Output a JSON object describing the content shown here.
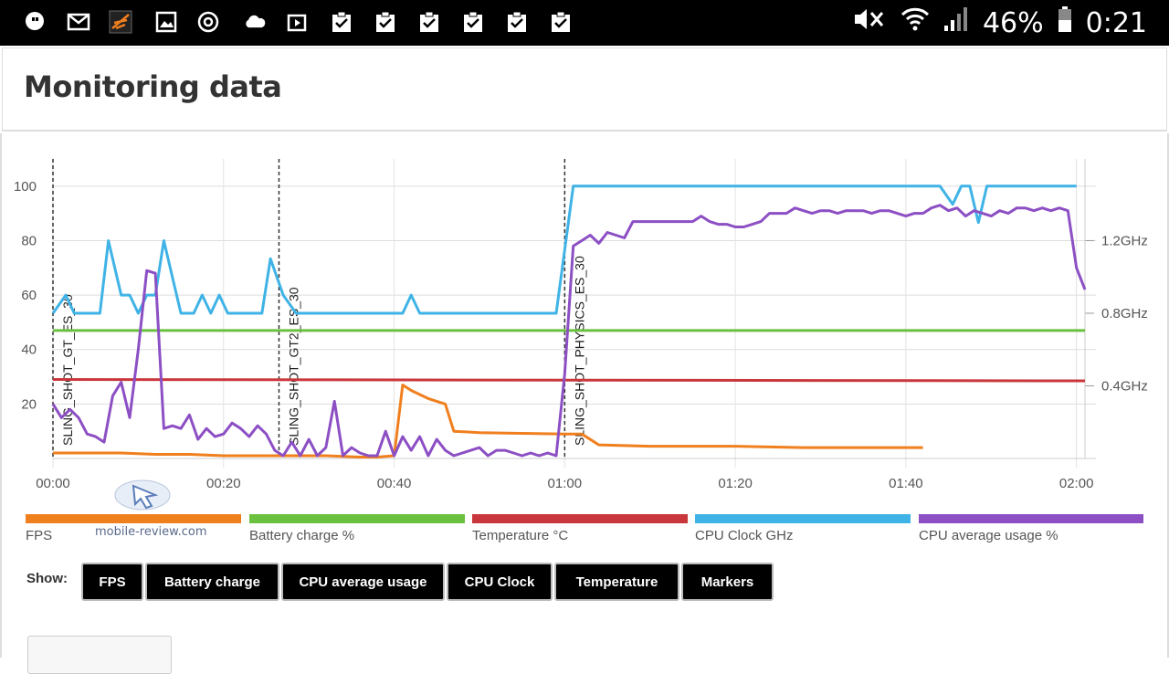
{
  "status_bar": {
    "battery_percent": "46%",
    "time": "0:21",
    "icons": [
      "chat-bubble-icon",
      "gmail-icon",
      "3dmark-icon",
      "gallery-icon",
      "sync-icon",
      "cloud-icon",
      "video-icon",
      "clipboard-check-icon",
      "clipboard-check-icon",
      "clipboard-check-icon",
      "clipboard-check-icon",
      "clipboard-check-icon",
      "clipboard-check-icon"
    ]
  },
  "page": {
    "title": "Monitoring data"
  },
  "watermark": {
    "text": "mobile-review.com"
  },
  "chart_data": {
    "type": "line",
    "x_ticks": [
      "00:00",
      "00:20",
      "00:40",
      "01:00",
      "01:20",
      "01:40",
      "02:00"
    ],
    "xlim_seconds": [
      0,
      7260
    ],
    "y_left_ticks": [
      "20",
      "40",
      "60",
      "80",
      "100"
    ],
    "ylim": [
      0,
      110
    ],
    "y_right_ticks": [
      "0.4GHz",
      "0.8GHz",
      "1.2GHz"
    ],
    "y_right_ylim_ghz": [
      0,
      1.65
    ],
    "grid": true,
    "markers": [
      {
        "t": 0,
        "label": "SLING_SHOT_GT_ES_30"
      },
      {
        "t": 1590,
        "label": "SLING_SHOT_GT2_ES_30"
      },
      {
        "t": 3600,
        "label": "SLING_SHOT_PHYSICS_ES_30"
      }
    ],
    "series": [
      {
        "name": "FPS",
        "color": "#f07f1e",
        "points": [
          [
            0,
            2
          ],
          [
            480,
            2
          ],
          [
            720,
            1.5
          ],
          [
            960,
            1.5
          ],
          [
            1200,
            1
          ],
          [
            1920,
            1
          ],
          [
            2160,
            0.5
          ],
          [
            2280,
            0.5
          ],
          [
            2400,
            1
          ],
          [
            2460,
            27
          ],
          [
            2520,
            25
          ],
          [
            2640,
            22
          ],
          [
            2760,
            20
          ],
          [
            2820,
            10
          ],
          [
            3000,
            9.5
          ],
          [
            3600,
            9
          ],
          [
            3720,
            9
          ],
          [
            3840,
            5
          ],
          [
            4200,
            4.5
          ],
          [
            4800,
            4.5
          ],
          [
            5280,
            4
          ],
          [
            5640,
            4
          ],
          [
            6000,
            4
          ],
          [
            6120,
            4
          ]
        ]
      },
      {
        "name": "Battery charge %",
        "color": "#6ac13f",
        "points": [
          [
            0,
            47
          ],
          [
            7260,
            47
          ]
        ]
      },
      {
        "name": "Temperature °C",
        "color": "#c9373d",
        "points": [
          [
            0,
            29
          ],
          [
            7260,
            28.5
          ]
        ]
      },
      {
        "name": "CPU Clock GHz",
        "color": "#3fb3e6",
        "points": [
          [
            0,
            0.8
          ],
          [
            90,
            0.9
          ],
          [
            150,
            0.8
          ],
          [
            270,
            0.8
          ],
          [
            330,
            0.8
          ],
          [
            390,
            1.2
          ],
          [
            480,
            0.9
          ],
          [
            540,
            0.9
          ],
          [
            600,
            0.8
          ],
          [
            660,
            0.9
          ],
          [
            720,
            0.9
          ],
          [
            780,
            1.2
          ],
          [
            840,
            1.0
          ],
          [
            900,
            0.8
          ],
          [
            990,
            0.8
          ],
          [
            1050,
            0.9
          ],
          [
            1110,
            0.8
          ],
          [
            1170,
            0.9
          ],
          [
            1230,
            0.8
          ],
          [
            1470,
            0.8
          ],
          [
            1530,
            1.1
          ],
          [
            1620,
            0.9
          ],
          [
            1710,
            0.8
          ],
          [
            2400,
            0.8
          ],
          [
            2460,
            0.8
          ],
          [
            2520,
            0.9
          ],
          [
            2580,
            0.8
          ],
          [
            3540,
            0.8
          ],
          [
            3660,
            1.5
          ],
          [
            6240,
            1.5
          ],
          [
            6330,
            1.4
          ],
          [
            6390,
            1.5
          ],
          [
            6450,
            1.5
          ],
          [
            6510,
            1.3
          ],
          [
            6570,
            1.5
          ],
          [
            7200,
            1.5
          ]
        ]
      },
      {
        "name": "CPU average usage %",
        "color": "#8c4fc4",
        "points": [
          [
            0,
            20
          ],
          [
            60,
            15
          ],
          [
            120,
            18
          ],
          [
            180,
            15
          ],
          [
            240,
            9
          ],
          [
            300,
            8
          ],
          [
            360,
            6
          ],
          [
            420,
            23
          ],
          [
            480,
            28
          ],
          [
            540,
            15
          ],
          [
            600,
            40
          ],
          [
            660,
            69
          ],
          [
            720,
            68
          ],
          [
            780,
            11
          ],
          [
            840,
            12
          ],
          [
            900,
            11
          ],
          [
            960,
            16
          ],
          [
            1020,
            7
          ],
          [
            1080,
            11
          ],
          [
            1140,
            8
          ],
          [
            1200,
            9
          ],
          [
            1260,
            13
          ],
          [
            1320,
            11
          ],
          [
            1380,
            8
          ],
          [
            1440,
            12
          ],
          [
            1500,
            9
          ],
          [
            1560,
            3
          ],
          [
            1620,
            1
          ],
          [
            1680,
            6
          ],
          [
            1740,
            1
          ],
          [
            1800,
            7
          ],
          [
            1860,
            1
          ],
          [
            1920,
            4
          ],
          [
            1980,
            21
          ],
          [
            2040,
            1
          ],
          [
            2100,
            4
          ],
          [
            2160,
            2
          ],
          [
            2220,
            1
          ],
          [
            2280,
            1
          ],
          [
            2340,
            10
          ],
          [
            2400,
            1
          ],
          [
            2460,
            8
          ],
          [
            2520,
            3
          ],
          [
            2580,
            8
          ],
          [
            2640,
            1
          ],
          [
            2700,
            7
          ],
          [
            2760,
            3
          ],
          [
            2820,
            1
          ],
          [
            2880,
            2
          ],
          [
            2940,
            3
          ],
          [
            3000,
            4
          ],
          [
            3060,
            1
          ],
          [
            3120,
            3
          ],
          [
            3180,
            3
          ],
          [
            3240,
            2
          ],
          [
            3300,
            1
          ],
          [
            3360,
            2
          ],
          [
            3420,
            1
          ],
          [
            3480,
            2
          ],
          [
            3540,
            1
          ],
          [
            3600,
            31
          ],
          [
            3660,
            78
          ],
          [
            3720,
            80
          ],
          [
            3780,
            82
          ],
          [
            3840,
            79
          ],
          [
            3900,
            83
          ],
          [
            3960,
            82
          ],
          [
            4020,
            81
          ],
          [
            4080,
            87
          ],
          [
            4500,
            87
          ],
          [
            4560,
            89
          ],
          [
            4620,
            87
          ],
          [
            4680,
            86
          ],
          [
            4740,
            86
          ],
          [
            4800,
            85
          ],
          [
            4860,
            85
          ],
          [
            4920,
            86
          ],
          [
            4980,
            87
          ],
          [
            5040,
            90
          ],
          [
            5160,
            90
          ],
          [
            5220,
            92
          ],
          [
            5280,
            91
          ],
          [
            5340,
            90
          ],
          [
            5400,
            91
          ],
          [
            5460,
            91
          ],
          [
            5520,
            90
          ],
          [
            5580,
            91
          ],
          [
            5640,
            91
          ],
          [
            5700,
            91
          ],
          [
            5760,
            90
          ],
          [
            5820,
            91
          ],
          [
            5880,
            91
          ],
          [
            6000,
            89
          ],
          [
            6060,
            90
          ],
          [
            6120,
            90
          ],
          [
            6180,
            92
          ],
          [
            6240,
            93
          ],
          [
            6300,
            91
          ],
          [
            6360,
            92
          ],
          [
            6420,
            89
          ],
          [
            6480,
            91
          ],
          [
            6540,
            90
          ],
          [
            6600,
            89
          ],
          [
            6660,
            91
          ],
          [
            6720,
            90
          ],
          [
            6780,
            92
          ],
          [
            6840,
            92
          ],
          [
            6900,
            91
          ],
          [
            6960,
            92
          ],
          [
            7020,
            91
          ],
          [
            7080,
            92
          ],
          [
            7140,
            91
          ],
          [
            7200,
            70
          ],
          [
            7260,
            62
          ]
        ]
      }
    ]
  },
  "legend": [
    {
      "label": "FPS",
      "color": "#f07f1e"
    },
    {
      "label": "Battery charge %",
      "color": "#6ac13f"
    },
    {
      "label": "Temperature °C",
      "color": "#c9373d"
    },
    {
      "label": "CPU Clock GHz",
      "color": "#3fb3e6"
    },
    {
      "label": "CPU average usage %",
      "color": "#8c4fc4"
    }
  ],
  "show": {
    "label": "Show:",
    "buttons": [
      "FPS",
      "Battery charge",
      "CPU average usage",
      "CPU Clock",
      "Temperature",
      "Markers"
    ]
  }
}
